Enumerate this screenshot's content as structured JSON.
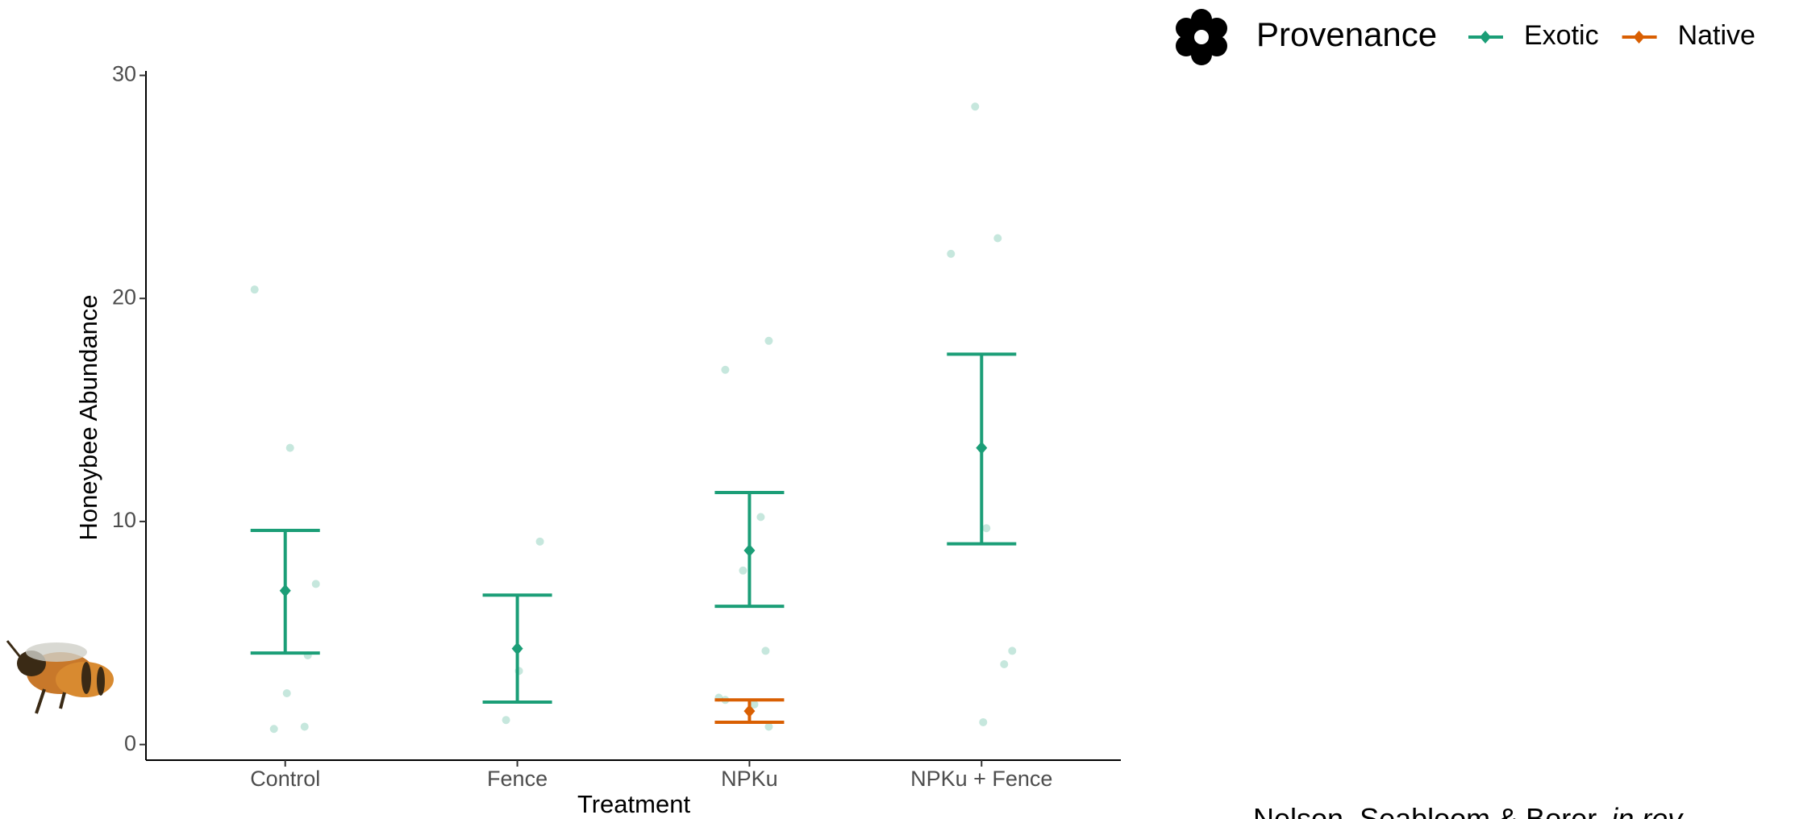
{
  "chart_data": {
    "type": "errorbar",
    "x_label": "Treatment",
    "y_label": "Honeybee Abundance",
    "categories": [
      "Control",
      "Fence",
      "NPKu",
      "NPKu + Fence"
    ],
    "ylim": [
      -0.7,
      30.2
    ],
    "yticks": [
      0,
      10,
      20,
      30
    ],
    "grid": false,
    "legend_title": "Provenance",
    "legend_position": "top-right",
    "series": [
      {
        "name": "Exotic",
        "color": "#1b9e77",
        "values": [
          6.9,
          4.3,
          8.7,
          13.3
        ],
        "lower": [
          4.1,
          1.9,
          6.2,
          9.0
        ],
        "upper": [
          9.6,
          6.7,
          11.3,
          17.5
        ],
        "points": [
          [
            20.4,
            13.3,
            7.2,
            4.0,
            2.3,
            0.7,
            0.8
          ],
          [
            9.1,
            3.3,
            1.1
          ],
          [
            18.1,
            16.8,
            10.2,
            7.8,
            4.2,
            2.1,
            1.8
          ],
          [
            28.6,
            22.7,
            22.0,
            9.7,
            4.2,
            3.6,
            1.0
          ]
        ]
      },
      {
        "name": "Native",
        "color": "#d95f02",
        "values": [
          null,
          null,
          1.5,
          null
        ],
        "lower": [
          null,
          null,
          1.0,
          null
        ],
        "upper": [
          null,
          null,
          2.0,
          null
        ],
        "points": [
          [],
          [],
          [
            0.8,
            2.0
          ],
          []
        ]
      }
    ],
    "citation": "Nelson, Seabloom & Borer,",
    "citation_note": "in rev"
  }
}
